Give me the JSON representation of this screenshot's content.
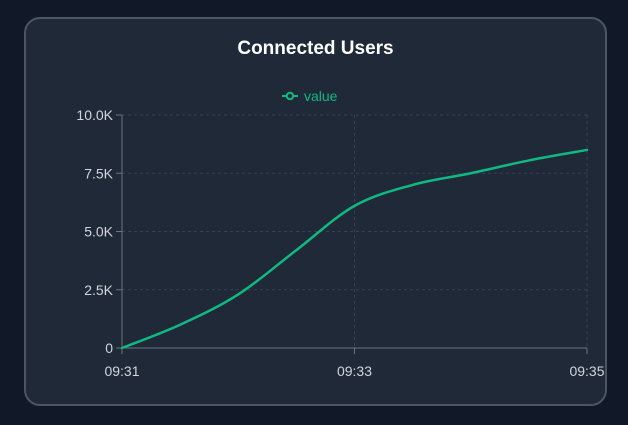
{
  "chart_data": {
    "type": "line",
    "title": "Connected Users",
    "xlabel": "",
    "ylabel": "",
    "x_ticks": [
      "09:31",
      "09:33",
      "09:35"
    ],
    "y_ticks": [
      "0",
      "2.5K",
      "5.0K",
      "7.5K",
      "10.0K"
    ],
    "ylim": [
      0,
      10000
    ],
    "xlim_minutes": [
      0,
      4
    ],
    "grid": true,
    "legend_position": "top-center",
    "series": [
      {
        "name": "value",
        "color": "#10b981",
        "x_minutes": [
          0,
          0.5,
          1,
          1.5,
          2,
          2.5,
          3,
          3.5,
          4
        ],
        "values": [
          0,
          1000,
          2300,
          4200,
          6100,
          7000,
          7500,
          8050,
          8500
        ]
      }
    ]
  },
  "colors": {
    "background": "#111827",
    "card": "#1f2937",
    "card_border": "#4b5563",
    "grid": "#374151",
    "axis": "#6b7280",
    "text": "#d1d5db",
    "accent": "#10b981"
  }
}
